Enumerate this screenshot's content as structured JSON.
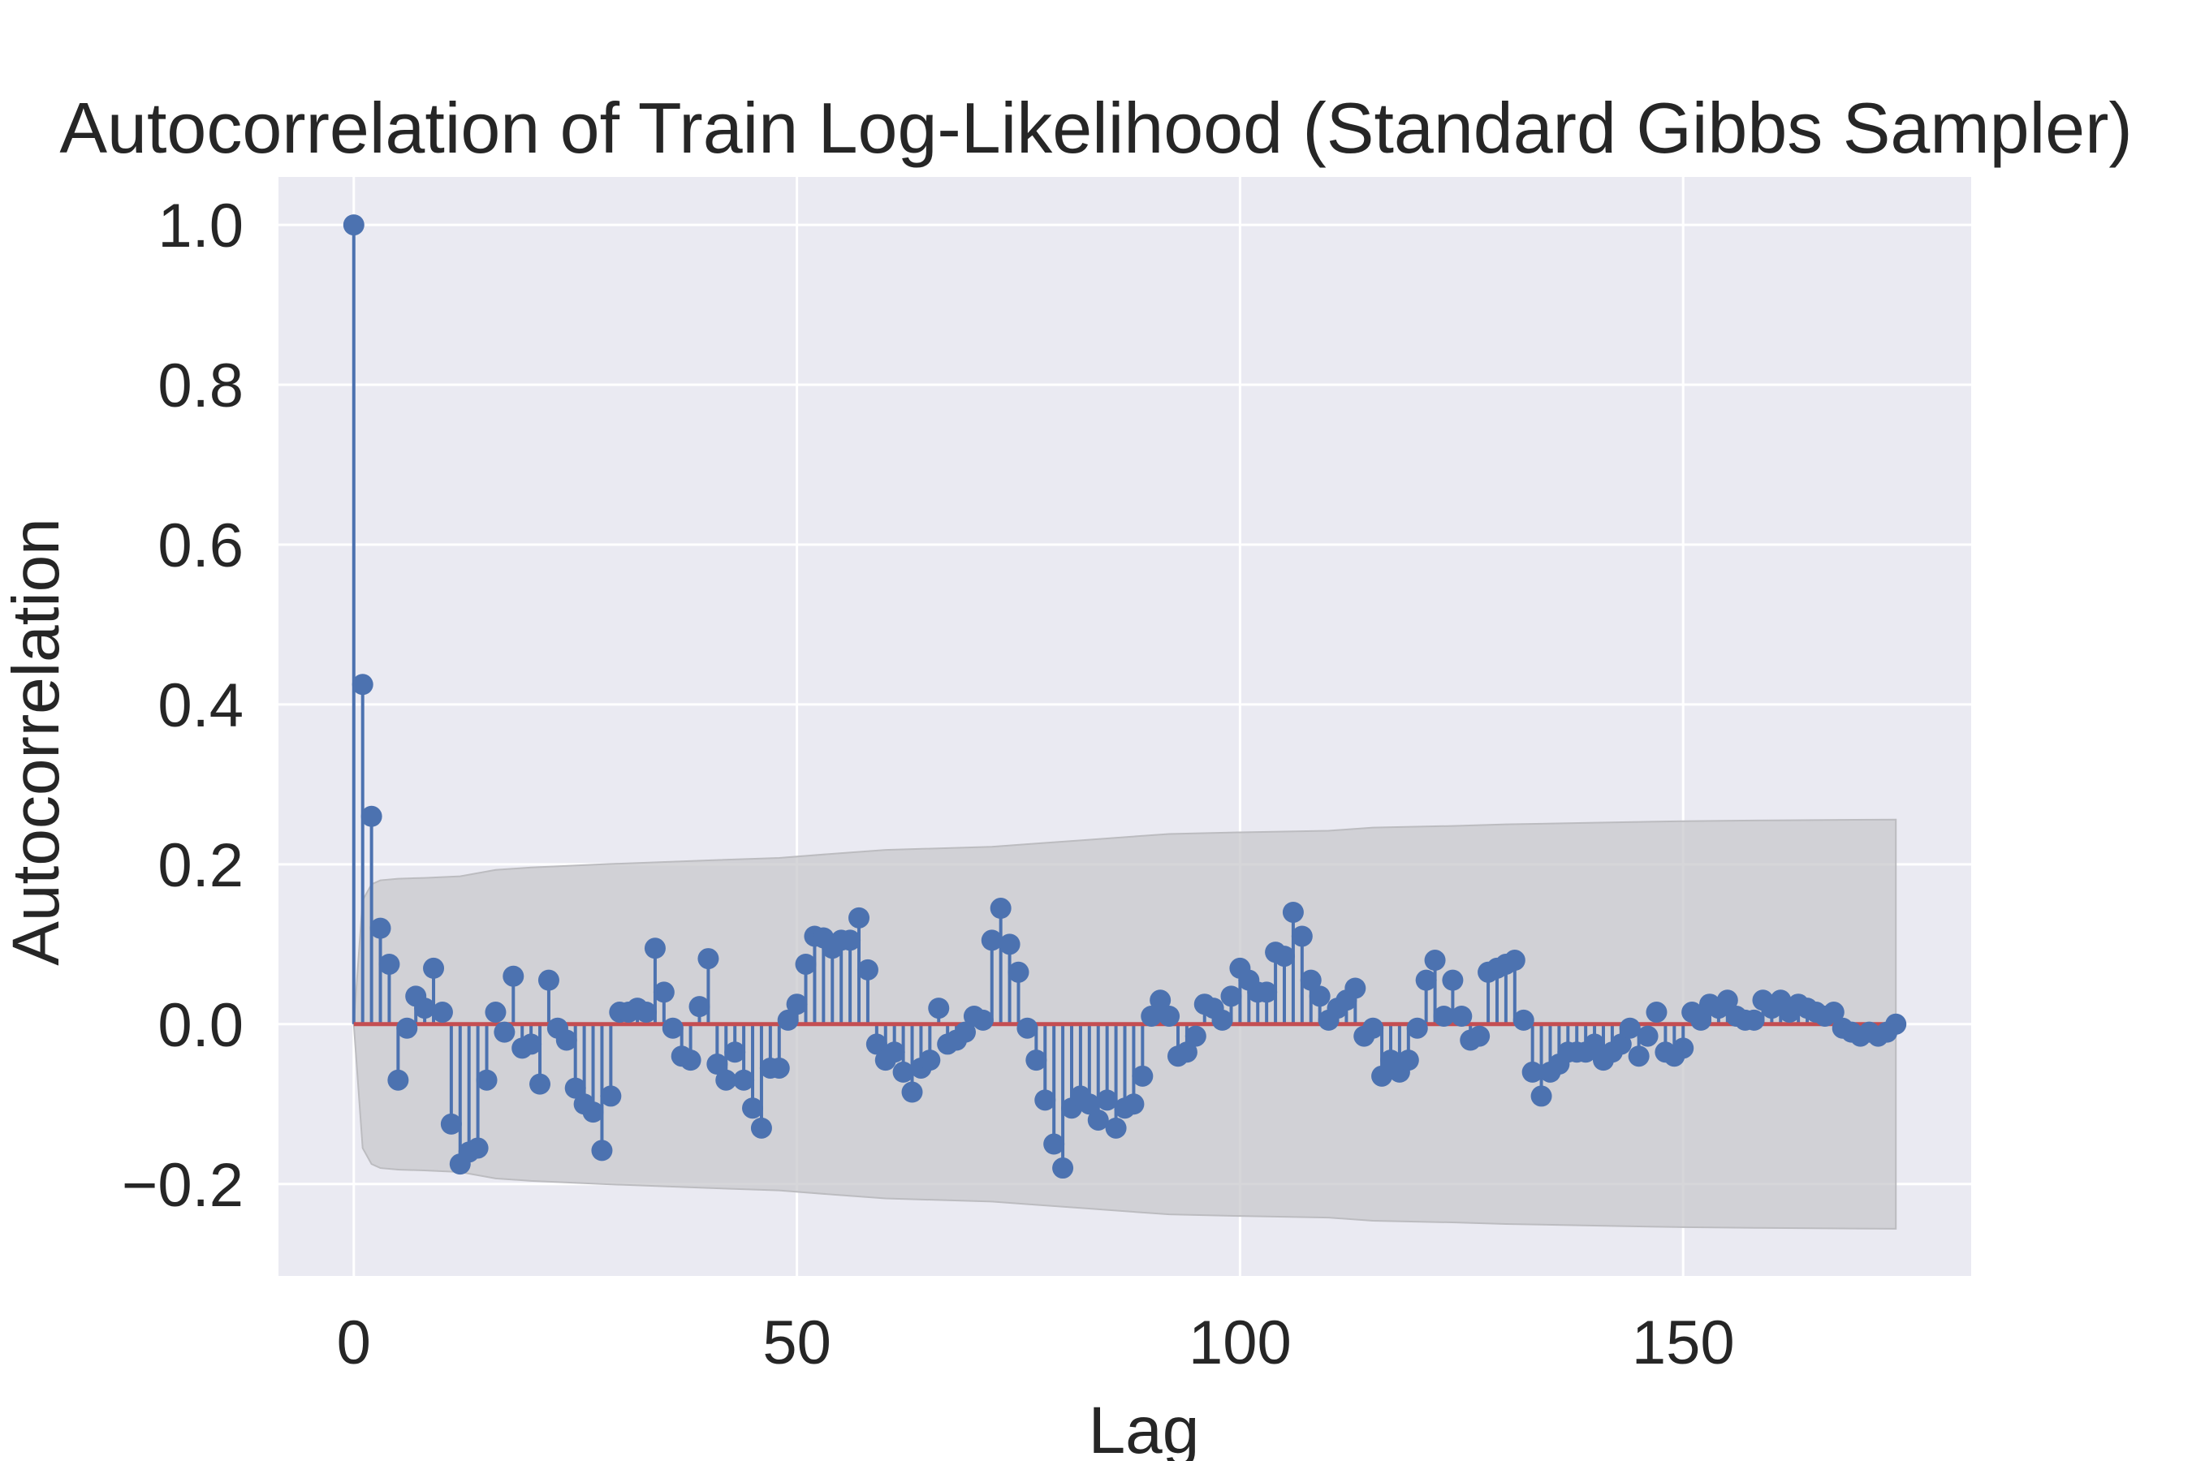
{
  "chart_data": {
    "type": "stem",
    "title": "Autocorrelation of Train Log-Likelihood (Standard Gibbs Sampler)",
    "xlabel": "Lag",
    "ylabel": "Autocorrelation",
    "xlim": [
      -8.5,
      182.5
    ],
    "ylim": [
      -0.315,
      1.06
    ],
    "xticks": [
      0,
      50,
      100,
      150
    ],
    "yticks": [
      -0.2,
      0.0,
      0.2,
      0.4,
      0.6,
      0.8,
      1.0
    ],
    "xtick_labels": [
      "0",
      "50",
      "100",
      "150"
    ],
    "ytick_labels": [
      "−0.2",
      "0.0",
      "0.2",
      "0.4",
      "0.6",
      "0.8",
      "1.0"
    ],
    "grid": true,
    "colors": {
      "background": "#eaeaf2",
      "grid": "#ffffff",
      "stem": "#4c72b0",
      "baseline": "#c44e52",
      "confidence_band": "#c8c8cc"
    },
    "lags": [
      0,
      1,
      2,
      3,
      4,
      5,
      6,
      7,
      8,
      9,
      10,
      11,
      12,
      13,
      14,
      15,
      16,
      17,
      18,
      19,
      20,
      21,
      22,
      23,
      24,
      25,
      26,
      27,
      28,
      29,
      30,
      31,
      32,
      33,
      34,
      35,
      36,
      37,
      38,
      39,
      40,
      41,
      42,
      43,
      44,
      45,
      46,
      47,
      48,
      49,
      50,
      51,
      52,
      53,
      54,
      55,
      56,
      57,
      58,
      59,
      60,
      61,
      62,
      63,
      64,
      65,
      66,
      67,
      68,
      69,
      70,
      71,
      72,
      73,
      74,
      75,
      76,
      77,
      78,
      79,
      80,
      81,
      82,
      83,
      84,
      85,
      86,
      87,
      88,
      89,
      90,
      91,
      92,
      93,
      94,
      95,
      96,
      97,
      98,
      99,
      100,
      101,
      102,
      103,
      104,
      105,
      106,
      107,
      108,
      109,
      110,
      111,
      112,
      113,
      114,
      115,
      116,
      117,
      118,
      119,
      120,
      121,
      122,
      123,
      124,
      125,
      126,
      127,
      128,
      129,
      130,
      131,
      132,
      133,
      134,
      135,
      136,
      137,
      138,
      139,
      140,
      141,
      142,
      143,
      144,
      145,
      146,
      147,
      148,
      149,
      150,
      151,
      152,
      153,
      154,
      155,
      156,
      157,
      158,
      159,
      160,
      161,
      162,
      163,
      164,
      165,
      166,
      167,
      168,
      169,
      170,
      171,
      172,
      173,
      174
    ],
    "autocorrelation": [
      1.0,
      0.425,
      0.26,
      0.12,
      0.075,
      -0.07,
      -0.005,
      0.035,
      0.02,
      0.07,
      0.015,
      -0.125,
      -0.175,
      -0.16,
      -0.155,
      -0.07,
      0.015,
      -0.01,
      0.06,
      -0.03,
      -0.025,
      -0.075,
      0.055,
      -0.005,
      -0.02,
      -0.08,
      -0.1,
      -0.11,
      -0.158,
      -0.09,
      0.015,
      0.015,
      0.02,
      0.015,
      0.095,
      0.04,
      -0.005,
      -0.04,
      -0.045,
      0.022,
      0.082,
      -0.05,
      -0.07,
      -0.035,
      -0.07,
      -0.105,
      -0.13,
      -0.055,
      -0.055,
      0.005,
      0.025,
      0.075,
      0.11,
      0.108,
      0.095,
      0.105,
      0.105,
      0.133,
      0.068,
      -0.025,
      -0.045,
      -0.035,
      -0.06,
      -0.085,
      -0.055,
      -0.045,
      0.02,
      -0.025,
      -0.02,
      -0.01,
      0.01,
      0.005,
      0.105,
      0.145,
      0.1,
      0.065,
      -0.005,
      -0.045,
      -0.095,
      -0.15,
      -0.18,
      -0.105,
      -0.09,
      -0.1,
      -0.12,
      -0.095,
      -0.13,
      -0.105,
      -0.1,
      -0.065,
      0.01,
      0.03,
      0.01,
      -0.04,
      -0.035,
      -0.015,
      0.025,
      0.02,
      0.005,
      0.035,
      0.07,
      0.055,
      0.04,
      0.04,
      0.09,
      0.085,
      0.14,
      0.11,
      0.055,
      0.035,
      0.005,
      0.02,
      0.03,
      0.045,
      -0.015,
      -0.005,
      -0.065,
      -0.045,
      -0.06,
      -0.045,
      -0.005,
      0.055,
      0.08,
      0.01,
      0.055,
      0.01,
      -0.02,
      -0.015,
      0.065,
      0.07,
      0.075,
      0.08,
      0.005,
      -0.06,
      -0.09,
      -0.06,
      -0.05,
      -0.035,
      -0.035,
      -0.035,
      -0.025,
      -0.045,
      -0.035,
      -0.025,
      -0.005,
      -0.04,
      -0.015,
      0.015,
      -0.035,
      -0.04,
      -0.03,
      0.015,
      0.005,
      0.025,
      0.02,
      0.03,
      0.01,
      0.005,
      0.005,
      0.03,
      0.02,
      0.03,
      0.015,
      0.025,
      0.02,
      0.015,
      0.01,
      0.015,
      -0.005,
      -0.01,
      -0.015,
      -0.01,
      -0.015,
      -0.01,
      0.0
    ],
    "confidence_band": {
      "lags": [
        0,
        1,
        2,
        3,
        5,
        8,
        12,
        16,
        20,
        28,
        40,
        48,
        55,
        60,
        72,
        77,
        82,
        92,
        100,
        110,
        115,
        124,
        130,
        140,
        150,
        160,
        174
      ],
      "upper": [
        0.0,
        0.155,
        0.175,
        0.18,
        0.182,
        0.183,
        0.185,
        0.193,
        0.196,
        0.2,
        0.205,
        0.208,
        0.214,
        0.218,
        0.222,
        0.226,
        0.23,
        0.238,
        0.24,
        0.242,
        0.246,
        0.248,
        0.25,
        0.252,
        0.254,
        0.255,
        0.256
      ]
    }
  }
}
